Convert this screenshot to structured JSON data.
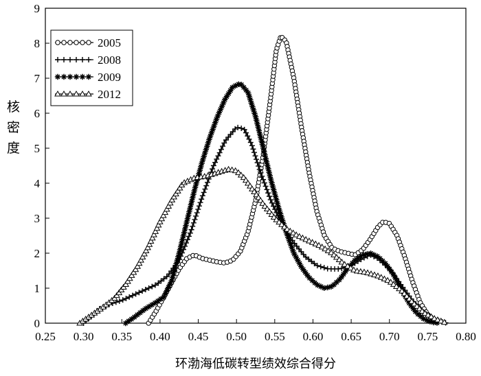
{
  "chart_data": {
    "type": "line",
    "title": "",
    "xlabel": "环渤海低碳转型绩效综合得分",
    "ylabel": "核密度",
    "xlim": [
      0.25,
      0.8
    ],
    "ylim": [
      0,
      9
    ],
    "xticks": [
      "0.25",
      "0.30",
      "0.35",
      "0.40",
      "0.45",
      "0.50",
      "0.55",
      "0.60",
      "0.65",
      "0.70",
      "0.75",
      "0.80"
    ],
    "yticks": [
      "0",
      "1",
      "2",
      "3",
      "4",
      "5",
      "6",
      "7",
      "8",
      "9"
    ],
    "grid": false,
    "legend_position": "top-left",
    "series": [
      {
        "name": "2005",
        "marker": "circle",
        "points": [
          [
            0.385,
            0.0
          ],
          [
            0.395,
            0.35
          ],
          [
            0.405,
            0.75
          ],
          [
            0.415,
            1.15
          ],
          [
            0.425,
            1.55
          ],
          [
            0.435,
            1.85
          ],
          [
            0.445,
            1.95
          ],
          [
            0.455,
            1.85
          ],
          [
            0.465,
            1.8
          ],
          [
            0.475,
            1.75
          ],
          [
            0.485,
            1.72
          ],
          [
            0.495,
            1.8
          ],
          [
            0.505,
            2.05
          ],
          [
            0.515,
            2.6
          ],
          [
            0.525,
            3.5
          ],
          [
            0.535,
            4.8
          ],
          [
            0.545,
            6.5
          ],
          [
            0.552,
            7.8
          ],
          [
            0.558,
            8.2
          ],
          [
            0.565,
            8.05
          ],
          [
            0.575,
            7.0
          ],
          [
            0.585,
            5.6
          ],
          [
            0.595,
            4.3
          ],
          [
            0.605,
            3.2
          ],
          [
            0.615,
            2.5
          ],
          [
            0.625,
            2.15
          ],
          [
            0.635,
            2.05
          ],
          [
            0.645,
            2.0
          ],
          [
            0.655,
            1.95
          ],
          [
            0.665,
            2.1
          ],
          [
            0.675,
            2.4
          ],
          [
            0.685,
            2.75
          ],
          [
            0.692,
            2.9
          ],
          [
            0.7,
            2.85
          ],
          [
            0.71,
            2.5
          ],
          [
            0.72,
            1.9
          ],
          [
            0.73,
            1.2
          ],
          [
            0.74,
            0.6
          ],
          [
            0.75,
            0.25
          ],
          [
            0.76,
            0.05
          ],
          [
            0.765,
            0.0
          ]
        ]
      },
      {
        "name": "2008",
        "marker": "plus",
        "points": [
          [
            0.3,
            0.0
          ],
          [
            0.31,
            0.2
          ],
          [
            0.32,
            0.4
          ],
          [
            0.335,
            0.55
          ],
          [
            0.35,
            0.65
          ],
          [
            0.365,
            0.8
          ],
          [
            0.38,
            0.95
          ],
          [
            0.395,
            1.1
          ],
          [
            0.41,
            1.35
          ],
          [
            0.425,
            1.8
          ],
          [
            0.44,
            2.6
          ],
          [
            0.455,
            3.6
          ],
          [
            0.47,
            4.5
          ],
          [
            0.485,
            5.2
          ],
          [
            0.5,
            5.6
          ],
          [
            0.51,
            5.55
          ],
          [
            0.52,
            5.1
          ],
          [
            0.53,
            4.4
          ],
          [
            0.545,
            3.5
          ],
          [
            0.56,
            2.8
          ],
          [
            0.575,
            2.3
          ],
          [
            0.59,
            1.9
          ],
          [
            0.605,
            1.65
          ],
          [
            0.62,
            1.55
          ],
          [
            0.635,
            1.55
          ],
          [
            0.65,
            1.65
          ],
          [
            0.665,
            1.85
          ],
          [
            0.675,
            1.95
          ],
          [
            0.685,
            1.85
          ],
          [
            0.7,
            1.55
          ],
          [
            0.715,
            1.1
          ],
          [
            0.73,
            0.65
          ],
          [
            0.745,
            0.3
          ],
          [
            0.76,
            0.1
          ],
          [
            0.775,
            0.0
          ]
        ]
      },
      {
        "name": "2009",
        "marker": "star",
        "points": [
          [
            0.355,
            0.0
          ],
          [
            0.365,
            0.15
          ],
          [
            0.38,
            0.4
          ],
          [
            0.395,
            0.6
          ],
          [
            0.405,
            0.75
          ],
          [
            0.415,
            1.2
          ],
          [
            0.425,
            2.0
          ],
          [
            0.435,
            2.9
          ],
          [
            0.445,
            3.8
          ],
          [
            0.455,
            4.6
          ],
          [
            0.465,
            5.3
          ],
          [
            0.475,
            5.9
          ],
          [
            0.485,
            6.4
          ],
          [
            0.495,
            6.75
          ],
          [
            0.505,
            6.85
          ],
          [
            0.515,
            6.6
          ],
          [
            0.525,
            5.9
          ],
          [
            0.535,
            5.0
          ],
          [
            0.545,
            4.1
          ],
          [
            0.555,
            3.3
          ],
          [
            0.565,
            2.6
          ],
          [
            0.575,
            2.0
          ],
          [
            0.585,
            1.6
          ],
          [
            0.595,
            1.3
          ],
          [
            0.605,
            1.1
          ],
          [
            0.615,
            1.0
          ],
          [
            0.625,
            1.05
          ],
          [
            0.635,
            1.25
          ],
          [
            0.645,
            1.55
          ],
          [
            0.655,
            1.8
          ],
          [
            0.665,
            1.95
          ],
          [
            0.675,
            2.0
          ],
          [
            0.685,
            1.9
          ],
          [
            0.695,
            1.7
          ],
          [
            0.705,
            1.4
          ],
          [
            0.715,
            1.0
          ],
          [
            0.725,
            0.6
          ],
          [
            0.735,
            0.3
          ],
          [
            0.745,
            0.12
          ],
          [
            0.755,
            0.03
          ],
          [
            0.765,
            0.0
          ]
        ]
      },
      {
        "name": "2012",
        "marker": "triangle",
        "points": [
          [
            0.295,
            0.0
          ],
          [
            0.305,
            0.15
          ],
          [
            0.315,
            0.3
          ],
          [
            0.325,
            0.45
          ],
          [
            0.34,
            0.7
          ],
          [
            0.355,
            1.1
          ],
          [
            0.37,
            1.6
          ],
          [
            0.385,
            2.2
          ],
          [
            0.4,
            2.9
          ],
          [
            0.415,
            3.5
          ],
          [
            0.43,
            4.0
          ],
          [
            0.445,
            4.15
          ],
          [
            0.46,
            4.2
          ],
          [
            0.475,
            4.3
          ],
          [
            0.49,
            4.4
          ],
          [
            0.5,
            4.35
          ],
          [
            0.51,
            4.15
          ],
          [
            0.52,
            3.85
          ],
          [
            0.535,
            3.4
          ],
          [
            0.55,
            3.0
          ],
          [
            0.565,
            2.7
          ],
          [
            0.58,
            2.5
          ],
          [
            0.595,
            2.35
          ],
          [
            0.61,
            2.2
          ],
          [
            0.625,
            2.0
          ],
          [
            0.64,
            1.7
          ],
          [
            0.655,
            1.5
          ],
          [
            0.67,
            1.45
          ],
          [
            0.685,
            1.35
          ],
          [
            0.7,
            1.2
          ],
          [
            0.715,
            0.95
          ],
          [
            0.73,
            0.6
          ],
          [
            0.745,
            0.3
          ],
          [
            0.76,
            0.12
          ],
          [
            0.775,
            0.0
          ]
        ]
      }
    ]
  }
}
